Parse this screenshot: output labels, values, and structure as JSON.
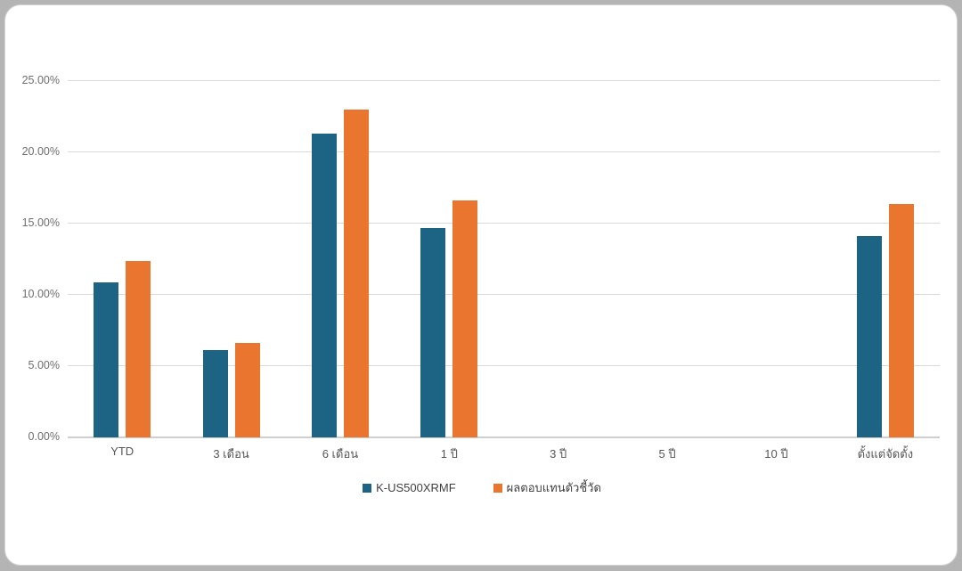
{
  "chart_data": {
    "type": "bar",
    "title": "",
    "xlabel": "",
    "ylabel": "",
    "categories": [
      "YTD",
      "3 เดือน",
      "6 เดือน",
      "1 ปี",
      "3 ปี",
      "5 ปี",
      "10 ปี",
      "ตั้งแต่จัดตั้ง"
    ],
    "series": [
      {
        "name": "K-US500XRMF",
        "color": "#1C6384",
        "values": [
          10.9,
          6.1,
          21.3,
          14.7,
          null,
          null,
          null,
          14.1
        ]
      },
      {
        "name": "ผลตอบแทนตัวชี้วัด",
        "color": "#E9752F",
        "values": [
          12.4,
          6.6,
          23.0,
          16.65,
          null,
          null,
          null,
          16.4
        ]
      }
    ],
    "y_axis": {
      "min": 0,
      "max": 25,
      "ticks": [
        0,
        5,
        10,
        15,
        20,
        25
      ],
      "tick_labels": [
        "0.00%",
        "5.00%",
        "10.00%",
        "15.00%",
        "20.00%",
        "25.00%"
      ],
      "unit": "percent"
    },
    "grid": true,
    "legend_position": "bottom"
  },
  "colors": {
    "grid": "#d9d9d9",
    "baseline": "#cfcfcf",
    "axis_text": "#6e6e6e",
    "category_text": "#565656",
    "legend_text": "#3f3f3f",
    "card_bg": "#ffffff",
    "card_border": "#d4d4d4",
    "page_bg": "#b4b4b4"
  }
}
